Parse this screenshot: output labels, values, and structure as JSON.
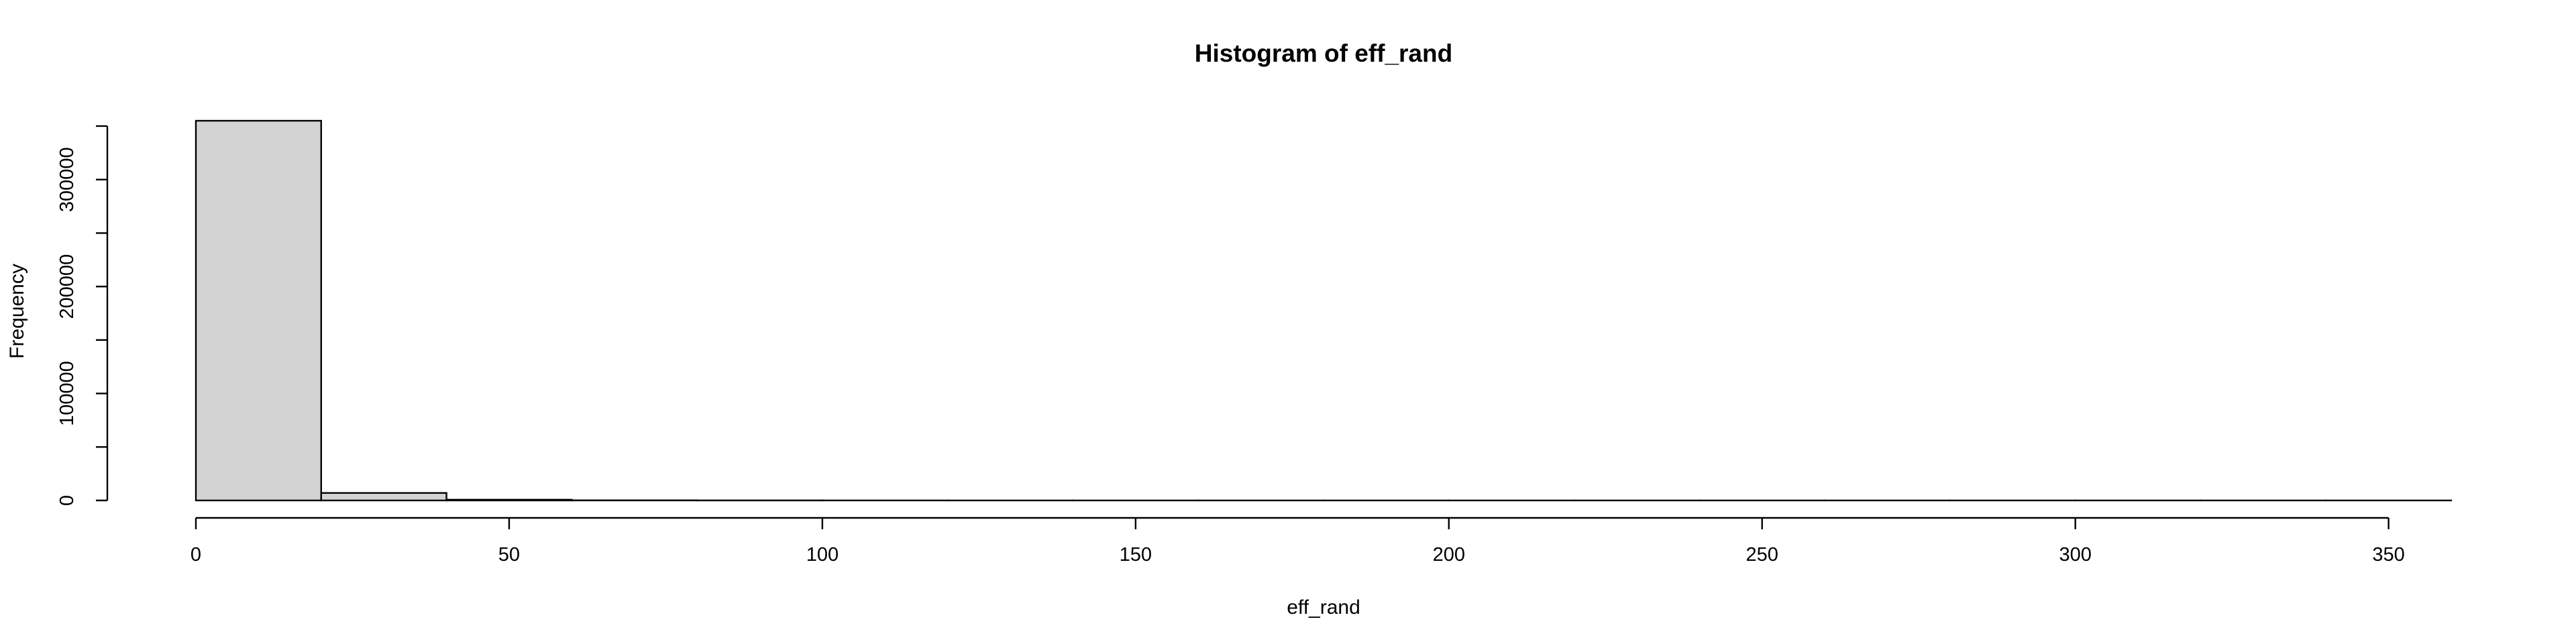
{
  "chart_data": {
    "type": "bar",
    "title": "Histogram of eff_rand",
    "xlabel": "eff_rand",
    "ylabel": "Frequency",
    "bin_edges": [
      0,
      20,
      40,
      60,
      80,
      100,
      120,
      140,
      160,
      180,
      200,
      220,
      240,
      260,
      280,
      300,
      320,
      340,
      360
    ],
    "values": [
      355000,
      7000,
      700,
      150,
      60,
      30,
      15,
      10,
      5,
      4,
      3,
      2,
      2,
      1,
      1,
      1,
      1,
      1
    ],
    "xlim": [
      0,
      360
    ],
    "ylim": [
      0,
      355000
    ],
    "x_ticks": [
      0,
      50,
      100,
      150,
      200,
      250,
      300,
      350
    ],
    "x_tick_labels": [
      "0",
      "50",
      "100",
      "150",
      "200",
      "250",
      "300",
      "350"
    ],
    "y_ticks": [
      0,
      50000,
      100000,
      150000,
      200000,
      250000,
      300000,
      350000
    ],
    "y_tick_labels": [
      "0",
      "",
      "100000",
      "",
      "200000",
      "",
      "300000",
      ""
    ],
    "bar_color": "#d3d3d3",
    "grid": false
  }
}
